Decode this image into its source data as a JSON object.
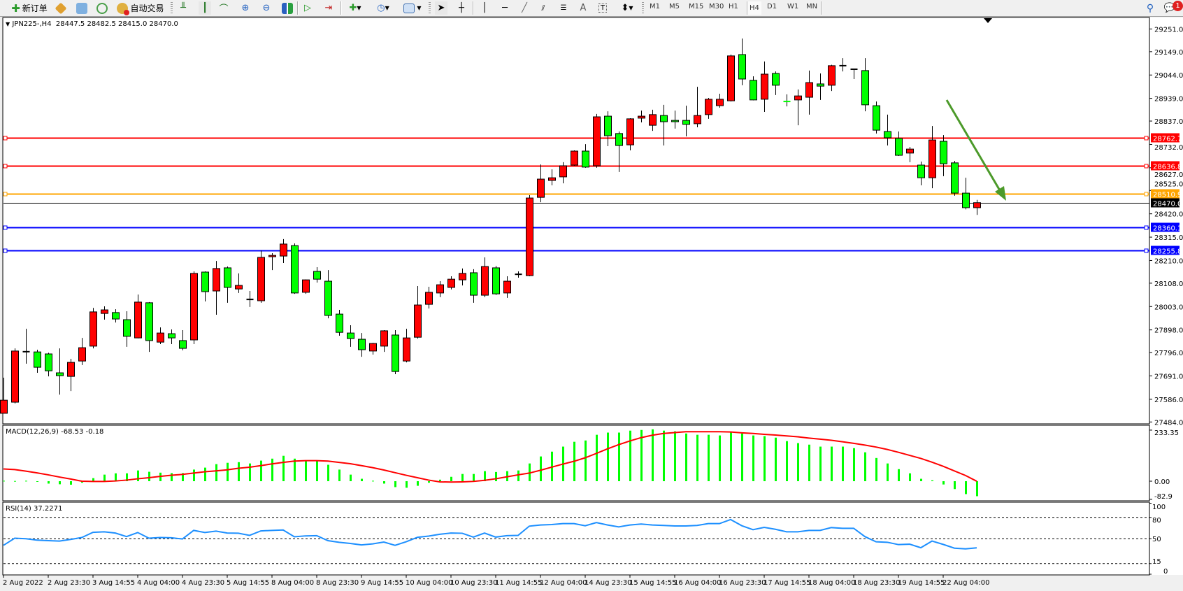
{
  "toolbar": {
    "new_order": "新订单",
    "auto_trading": "自动交易",
    "icons": [
      "new-order-icon",
      "market-watch-icon",
      "navigator-icon",
      "signals-icon",
      "auto-trading-icon",
      "bar-chart-icon",
      "candlestick-icon",
      "line-chart-icon",
      "zoom-in-icon",
      "zoom-out-icon",
      "tile-windows-icon",
      "chart-shift-icon",
      "autoscroll-icon",
      "new-chart-icon",
      "periods-icon",
      "templates-icon",
      "cursor-icon",
      "crosshair-icon",
      "vertical-line-icon",
      "horizontal-line-icon",
      "trendline-icon",
      "equidistant-channel-icon",
      "fibonacci-icon",
      "text-icon",
      "text-label-icon",
      "arrows-icon",
      "search-icon",
      "notifications-icon"
    ],
    "timeframes": [
      "M1",
      "M5",
      "M15",
      "M30",
      "H1",
      "H4",
      "D1",
      "W1",
      "MN"
    ],
    "active_timeframe": "H4",
    "notification_count": "1",
    "text_tool": "A"
  },
  "chart_header": {
    "symbol": "JPN225-,H4",
    "ohlc": "28447.5 28482.5 28415.0 28470.0"
  },
  "price_axis": [
    "29251.0",
    "29149.0",
    "29044.0",
    "28939.0",
    "28837.0",
    "28732.0",
    "28627.0",
    "28525.0",
    "28420.0",
    "28315.0",
    "28210.0",
    "28108.0",
    "28003.0",
    "27898.0",
    "27796.0",
    "27691.0",
    "27586.0",
    "27484.0"
  ],
  "levels": [
    {
      "price": 28762.7,
      "label": "28762.7",
      "color": "#ff0000"
    },
    {
      "price": 28636.8,
      "label": "28636.8",
      "color": "#ff0000"
    },
    {
      "price": 28510.9,
      "label": "28510.9",
      "color": "#ffa500"
    },
    {
      "price": 28360.1,
      "label": "28360.1",
      "color": "#0000ff"
    },
    {
      "price": 28255.8,
      "label": "28255.8",
      "color": "#0000ff"
    }
  ],
  "current_price": {
    "price": 28470.0,
    "label": "28470.0",
    "color": "#000000"
  },
  "colors": {
    "bull": "#ff0000",
    "bear": "#00ff00",
    "macd_hist": "#00ff00",
    "macd_signal": "#ff0000",
    "rsi": "#1e90ff",
    "arrow": "#4c9a2a"
  },
  "macd": {
    "label": "MACD(12,26,9) -68.53 -0.18",
    "axis": [
      "233.35",
      "0.00",
      "-82.9"
    ]
  },
  "rsi": {
    "label": "RSI(14) 37.2271",
    "axis": [
      "100",
      "80",
      "50",
      "15",
      "0"
    ],
    "levels": [
      80,
      50,
      15
    ]
  },
  "chart_data": {
    "type": "candlestick",
    "symbol": "JPN225-",
    "timeframe": "H4",
    "ohlc_order": [
      "open",
      "high",
      "low",
      "close"
    ],
    "candles": [
      [
        27523,
        27683,
        27523,
        27582
      ],
      [
        27573,
        27815,
        27567,
        27803
      ],
      [
        27800,
        27903,
        27746,
        27799
      ],
      [
        27799,
        27809,
        27705,
        27730
      ],
      [
        27790,
        27795,
        27689,
        27714
      ],
      [
        27705,
        27815,
        27607,
        27692
      ],
      [
        27689,
        27768,
        27623,
        27752
      ],
      [
        27758,
        27862,
        27740,
        27818
      ],
      [
        27825,
        27997,
        27815,
        27979
      ],
      [
        27972,
        28004,
        27944,
        27988
      ],
      [
        27976,
        27991,
        27931,
        27947
      ],
      [
        27944,
        27982,
        27822,
        27869
      ],
      [
        27862,
        28057,
        27860,
        28023
      ],
      [
        28020,
        28023,
        27799,
        27850
      ],
      [
        27843,
        27909,
        27834,
        27884
      ],
      [
        27881,
        27900,
        27834,
        27862
      ],
      [
        27850,
        27897,
        27806,
        27815
      ],
      [
        27853,
        28161,
        27834,
        28152
      ],
      [
        28158,
        28161,
        28026,
        28070
      ],
      [
        28073,
        28208,
        27966,
        28174
      ],
      [
        28177,
        28183,
        28020,
        28089
      ],
      [
        28082,
        28152,
        28064,
        28098
      ],
      [
        28035,
        28073,
        28001,
        28032
      ],
      [
        28029,
        28255,
        28020,
        28224
      ],
      [
        28227,
        28243,
        28167,
        28233
      ],
      [
        28230,
        28306,
        28199,
        28284
      ],
      [
        28277,
        28287,
        28060,
        28064
      ],
      [
        28067,
        28125,
        28060,
        28123
      ],
      [
        28161,
        28180,
        28111,
        28126
      ],
      [
        28117,
        28167,
        27950,
        27963
      ],
      [
        27969,
        27988,
        27872,
        27887
      ],
      [
        27884,
        27919,
        27822,
        27859
      ],
      [
        27856,
        27884,
        27777,
        27809
      ],
      [
        27803,
        27840,
        27787,
        27837
      ],
      [
        27825,
        27897,
        27799,
        27894
      ],
      [
        27875,
        27897,
        27699,
        27711
      ],
      [
        27758,
        27903,
        27752,
        27862
      ],
      [
        27865,
        28095,
        27859,
        28010
      ],
      [
        28013,
        28092,
        27994,
        28067
      ],
      [
        28064,
        28117,
        28045,
        28101
      ],
      [
        28089,
        28139,
        28080,
        28126
      ],
      [
        28123,
        28174,
        28098,
        28152
      ],
      [
        28155,
        28171,
        28020,
        28054
      ],
      [
        28054,
        28224,
        28045,
        28183
      ],
      [
        28177,
        28186,
        28055,
        28060
      ],
      [
        28064,
        28139,
        28042,
        28117
      ],
      [
        28145,
        28161,
        28133,
        28148
      ],
      [
        28142,
        28504,
        28139,
        28491
      ],
      [
        28494,
        28642,
        28472,
        28576
      ],
      [
        28570,
        28620,
        28548,
        28582
      ],
      [
        28586,
        28652,
        28557,
        28636
      ],
      [
        28639,
        28705,
        28636,
        28702
      ],
      [
        28702,
        28733,
        28627,
        28630
      ],
      [
        28636,
        28869,
        28627,
        28856
      ],
      [
        28859,
        28881,
        28724,
        28771
      ],
      [
        28781,
        28790,
        28608,
        28727
      ],
      [
        28730,
        28850,
        28705,
        28847
      ],
      [
        28850,
        28884,
        28831,
        28859
      ],
      [
        28818,
        28888,
        28793,
        28866
      ],
      [
        28862,
        28910,
        28727,
        28834
      ],
      [
        28840,
        28884,
        28803,
        28834
      ],
      [
        28840,
        28906,
        28768,
        28822
      ],
      [
        28825,
        28991,
        28809,
        28862
      ],
      [
        28866,
        28941,
        28847,
        28935
      ],
      [
        28906,
        28960,
        28897,
        28935
      ],
      [
        28928,
        29136,
        28925,
        29130
      ],
      [
        29136,
        29208,
        28998,
        29026
      ],
      [
        29020,
        29038,
        28930,
        28932
      ],
      [
        28935,
        29105,
        28878,
        29048
      ],
      [
        29051,
        29060,
        28954,
        28998
      ],
      [
        28925,
        28957,
        28903,
        28922
      ],
      [
        28932,
        28979,
        28818,
        28950
      ],
      [
        28944,
        29064,
        28866,
        29010
      ],
      [
        29004,
        29051,
        28932,
        28994
      ],
      [
        28998,
        29090,
        28972,
        29086
      ],
      [
        29086,
        29120,
        29060,
        29086
      ],
      [
        29070,
        29073,
        29026,
        29070
      ],
      [
        29064,
        29120,
        28881,
        28910
      ],
      [
        28906,
        28925,
        28781,
        28796
      ],
      [
        28790,
        28866,
        28727,
        28762
      ],
      [
        28759,
        28790,
        28680,
        28683
      ],
      [
        28693,
        28721,
        28652,
        28711
      ],
      [
        28639,
        28655,
        28548,
        28582
      ],
      [
        28582,
        28815,
        28535,
        28752
      ],
      [
        28746,
        28774,
        28589,
        28645
      ],
      [
        28649,
        28658,
        28501,
        28513
      ],
      [
        28513,
        28582,
        28440,
        28447.5
      ],
      [
        28447.5,
        28482.5,
        28415,
        28470
      ]
    ],
    "time_labels": [
      {
        "candle": 0,
        "label": "2 Aug 2022"
      },
      {
        "candle": 4,
        "label": "2 Aug 23:30"
      },
      {
        "candle": 8,
        "label": "3 Aug 14:55"
      },
      {
        "candle": 12,
        "label": "4 Aug 04:00"
      },
      {
        "candle": 16,
        "label": "4 Aug 23:30"
      },
      {
        "candle": 20,
        "label": "5 Aug 14:55"
      },
      {
        "candle": 24,
        "label": "8 Aug 04:00"
      },
      {
        "candle": 28,
        "label": "8 Aug 23:30"
      },
      {
        "candle": 32,
        "label": "9 Aug 14:55"
      },
      {
        "candle": 36,
        "label": "10 Aug 04:00"
      },
      {
        "candle": 40,
        "label": "10 Aug 23:30"
      },
      {
        "candle": 44,
        "label": "11 Aug 14:55"
      },
      {
        "candle": 48,
        "label": "12 Aug 04:00"
      },
      {
        "candle": 52,
        "label": "14 Aug 23:30"
      },
      {
        "candle": 56,
        "label": "15 Aug 14:55"
      },
      {
        "candle": 60,
        "label": "16 Aug 04:00"
      },
      {
        "candle": 64,
        "label": "16 Aug 23:30"
      },
      {
        "candle": 68,
        "label": "17 Aug 14:55"
      },
      {
        "candle": 72,
        "label": "18 Aug 04:00"
      },
      {
        "candle": 76,
        "label": "18 Aug 23:30"
      },
      {
        "candle": 80,
        "label": "19 Aug 14:55"
      },
      {
        "candle": 84,
        "label": "22 Aug 04:00"
      }
    ],
    "price_range": [
      27484,
      29251
    ],
    "macd_histogram": [
      2,
      1,
      2,
      -3,
      -11,
      -14,
      -16,
      -7,
      14,
      30,
      36,
      36,
      49,
      43,
      39,
      37,
      37,
      53,
      62,
      78,
      84,
      87,
      81,
      94,
      103,
      116,
      103,
      91,
      95,
      75,
      53,
      30,
      11,
      2,
      -11,
      -27,
      -30,
      -21,
      -7,
      7,
      20,
      33,
      33,
      46,
      42,
      46,
      49,
      81,
      113,
      135,
      158,
      180,
      186,
      212,
      222,
      222,
      231,
      234,
      237,
      231,
      228,
      218,
      212,
      212,
      209,
      222,
      218,
      209,
      206,
      199,
      183,
      174,
      167,
      158,
      158,
      158,
      151,
      132,
      106,
      81,
      55,
      36,
      11,
      4,
      -15,
      -36,
      -59,
      -68.53
    ],
    "macd_signal": [
      56,
      53,
      46,
      38,
      29,
      19,
      10,
      0,
      -1,
      -1,
      1,
      5,
      11,
      16,
      22,
      27,
      31,
      37,
      43,
      47,
      52,
      59,
      64,
      71,
      79,
      86,
      92,
      94,
      94,
      92,
      86,
      80,
      71,
      62,
      51,
      39,
      27,
      16,
      5,
      -3,
      -4,
      -3,
      -1,
      4,
      11,
      20,
      29,
      37,
      50,
      64,
      78,
      91,
      107,
      127,
      148,
      167,
      184,
      199,
      210,
      218,
      222,
      226,
      226,
      226,
      226,
      225,
      221,
      218,
      214,
      211,
      207,
      203,
      197,
      192,
      187,
      180,
      173,
      165,
      156,
      145,
      132,
      118,
      104,
      87,
      68,
      47,
      26,
      -0.18
    ],
    "macd_range": [
      -82.9,
      233.35
    ],
    "rsi": [
      40.7,
      50.7,
      50,
      48,
      47.3,
      46.7,
      49,
      51.7,
      59,
      59.7,
      58,
      53,
      58.7,
      50.7,
      51.7,
      51.3,
      49.7,
      61.7,
      58.7,
      60.7,
      58,
      57.7,
      54.7,
      61,
      61.7,
      62.3,
      52.7,
      54,
      54.3,
      47.3,
      45,
      43.3,
      41.3,
      42.7,
      45.3,
      40.7,
      45.7,
      52,
      53.7,
      56.3,
      58,
      57.7,
      52.3,
      58,
      52.3,
      54.3,
      54.7,
      67.7,
      69.3,
      70,
      71.3,
      71.3,
      68.3,
      72.7,
      69.3,
      66.7,
      69.3,
      70.7,
      69.3,
      68.7,
      68,
      68,
      68.7,
      71.3,
      71.3,
      77,
      68.3,
      62.7,
      66,
      63.3,
      59.7,
      59.7,
      61.7,
      61.7,
      65.7,
      64.7,
      64.7,
      53,
      45.7,
      45,
      41.7,
      42.3,
      37.3,
      46.7,
      42,
      36.7,
      35.7,
      37.2271
    ],
    "rsi_range": [
      0,
      100
    ]
  }
}
